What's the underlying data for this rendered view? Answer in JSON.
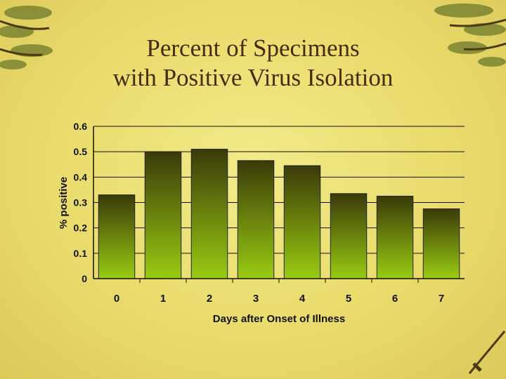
{
  "slide": {
    "title_line1": "Percent of Specimens",
    "title_line2": "with Positive Virus Isolation"
  },
  "colors": {
    "bar_top": "#3a3a08",
    "bar_bottom": "#99cc11",
    "text": "#111111",
    "title": "#4a2a0e"
  },
  "chart_data": {
    "type": "bar",
    "categories": [
      "0",
      "1",
      "2",
      "3",
      "4",
      "5",
      "6",
      "7"
    ],
    "values": [
      0.33,
      0.5,
      0.51,
      0.465,
      0.445,
      0.335,
      0.325,
      0.275
    ],
    "title": "",
    "xlabel": "Days after Onset of Illness",
    "ylabel": "% positive",
    "ylim": [
      0,
      0.6
    ],
    "yticks": [
      "0",
      "0.1",
      "0.2",
      "0.3",
      "0.4",
      "0.5",
      "0.6"
    ],
    "grid": true,
    "legend": "none"
  }
}
